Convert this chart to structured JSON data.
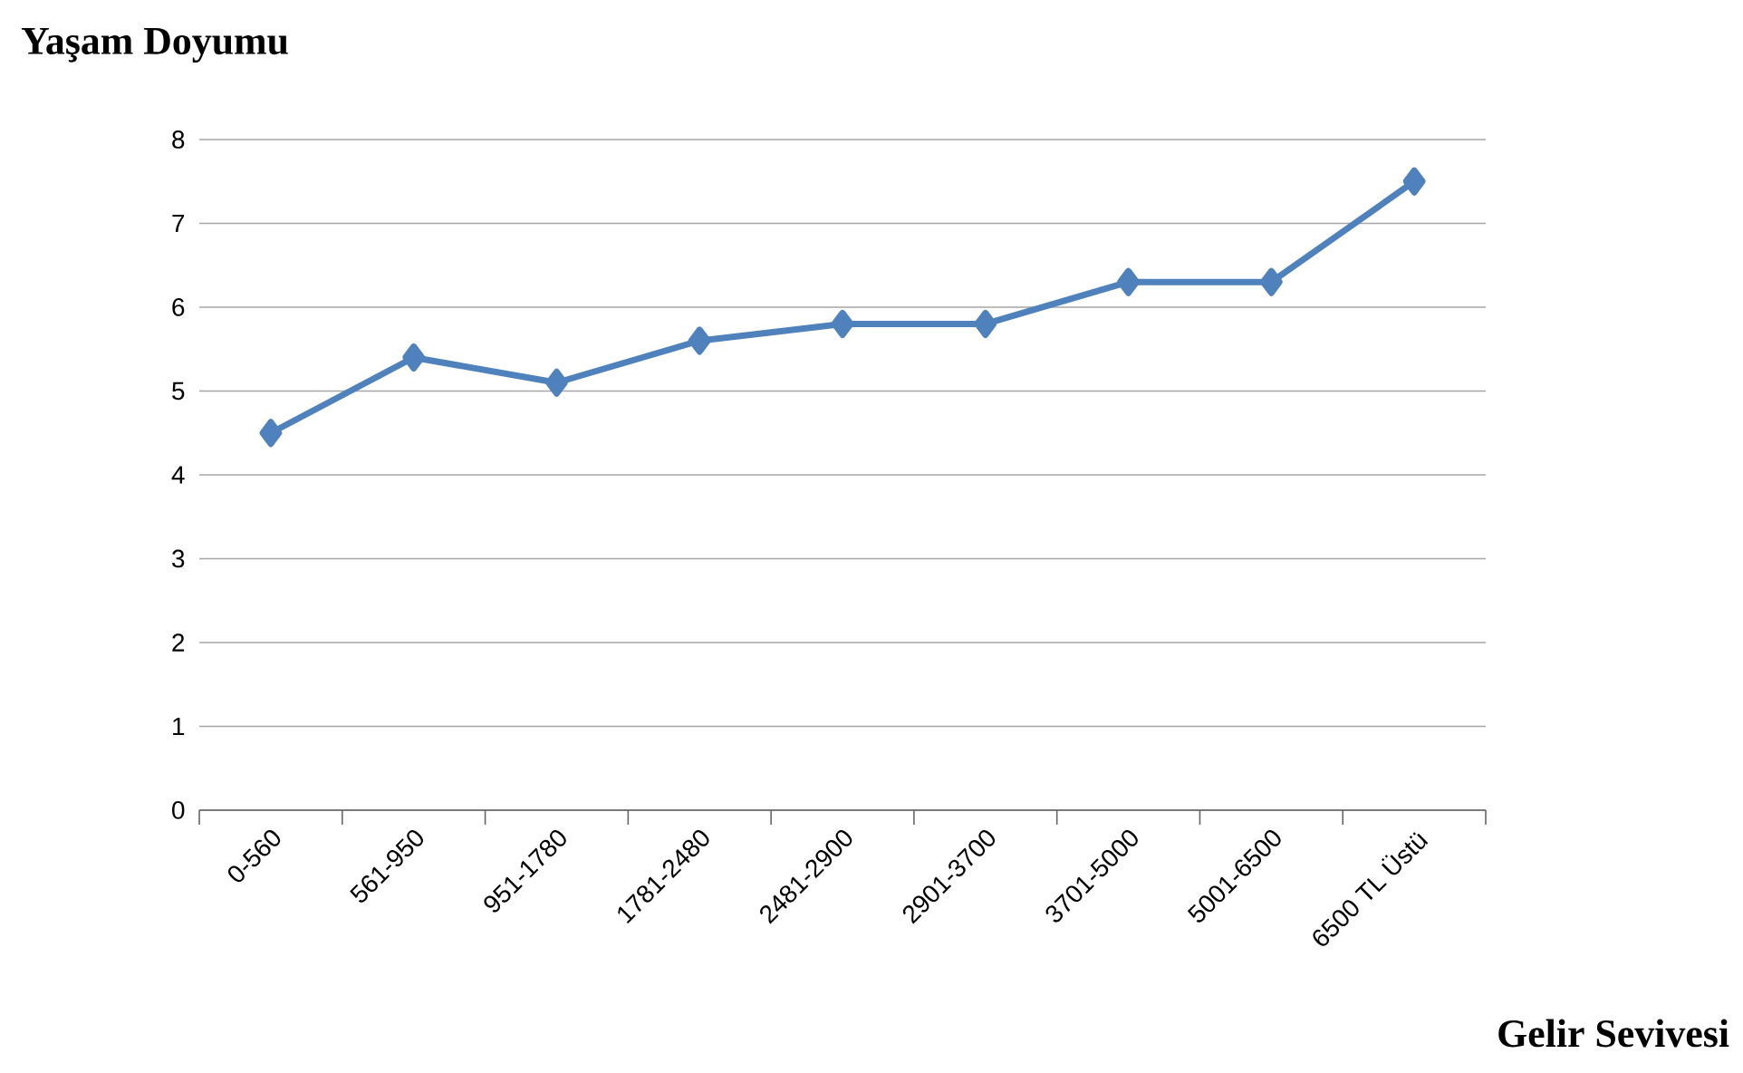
{
  "chart_data": {
    "type": "line",
    "title": "Yaşam Doyumu",
    "xlabel": "Gelir Sevivesi",
    "categories": [
      "0-560",
      "561-950",
      "951-1780",
      "1781-2480",
      "2481-2900",
      "2901-3700",
      "3701-5000",
      "5001-6500",
      "6500 TL Üstü"
    ],
    "values": [
      4.5,
      5.4,
      5.1,
      5.6,
      5.8,
      5.8,
      6.3,
      6.3,
      7.5
    ],
    "color": "#4f81bd",
    "ylim": [
      0,
      8
    ],
    "yticks": [
      0,
      1,
      2,
      3,
      4,
      5,
      6,
      7,
      8
    ],
    "grid": "y",
    "marker": "diamond",
    "line_style": "solid"
  }
}
